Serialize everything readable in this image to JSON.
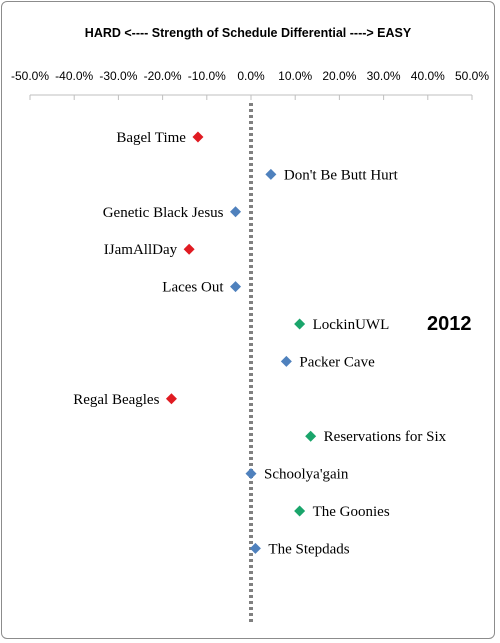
{
  "chart_data": {
    "type": "scatter",
    "title": "HARD <----  Strength of Schedule Differential  ----> EASY",
    "annotation": "2012",
    "xlim": [
      -0.5,
      0.5
    ],
    "x_ticks": [
      "-50.0%",
      "-40.0%",
      "-30.0%",
      "-20.0%",
      "-10.0%",
      "0.0%",
      "10.0%",
      "20.0%",
      "30.0%",
      "40.0%",
      "50.0%"
    ],
    "zero_line": "dotted",
    "colors": {
      "red": "#e01b22",
      "blue": "#4f81bd",
      "green": "#1aa56b"
    },
    "points": [
      {
        "label": "Bagel Time",
        "x": -0.12,
        "color": "red",
        "label_side": "left"
      },
      {
        "label": "Don't Be Butt Hurt",
        "x": 0.045,
        "color": "blue",
        "label_side": "right"
      },
      {
        "label": "Genetic Black Jesus",
        "x": -0.035,
        "color": "blue",
        "label_side": "left"
      },
      {
        "label": "IJamAllDay",
        "x": -0.14,
        "color": "red",
        "label_side": "left"
      },
      {
        "label": "Laces Out",
        "x": -0.035,
        "color": "blue",
        "label_side": "left"
      },
      {
        "label": "LockinUWL",
        "x": 0.11,
        "color": "green",
        "label_side": "right"
      },
      {
        "label": "Packer Cave",
        "x": 0.08,
        "color": "blue",
        "label_side": "right"
      },
      {
        "label": "Regal Beagles",
        "x": -0.18,
        "color": "red",
        "label_side": "left"
      },
      {
        "label": "Reservations for Six",
        "x": 0.135,
        "color": "green",
        "label_side": "right"
      },
      {
        "label": "Schoolya'gain",
        "x": 0.0,
        "color": "blue",
        "label_side": "right"
      },
      {
        "label": "The Goonies",
        "x": 0.11,
        "color": "green",
        "label_side": "right"
      },
      {
        "label": "The Stepdads",
        "x": 0.01,
        "color": "blue",
        "label_side": "right"
      }
    ]
  }
}
